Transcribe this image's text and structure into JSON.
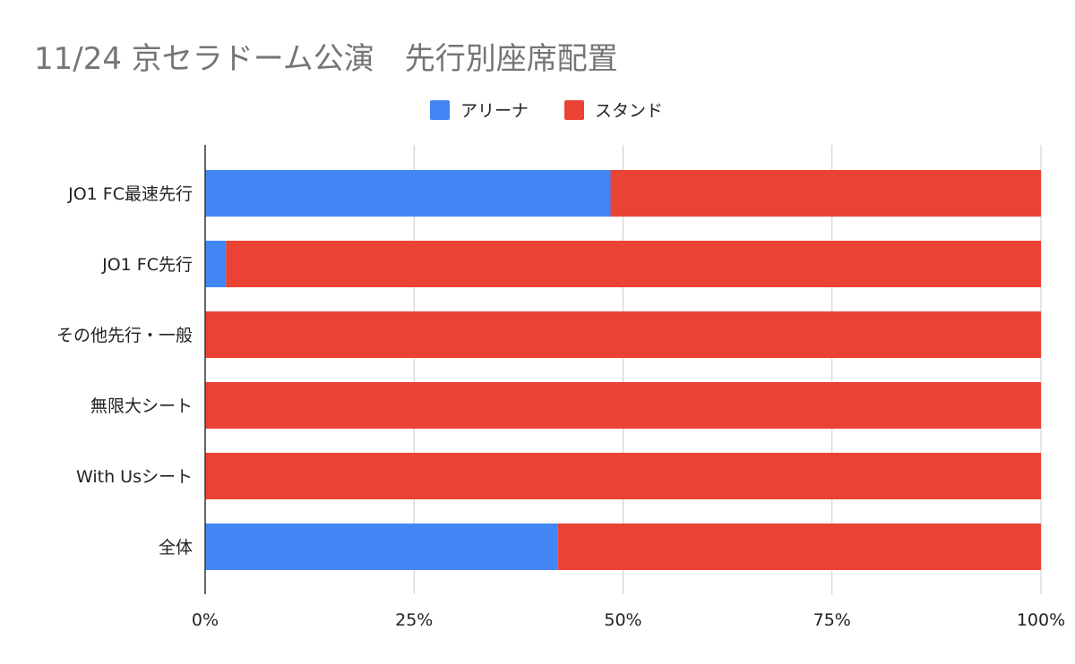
{
  "chart_data": {
    "type": "bar",
    "orientation": "horizontal",
    "stacked": "percent",
    "title": "11/24 京セラドーム公演　先行別座席配置",
    "categories": [
      "JO1 FC最速先行",
      "JO1 FC先行",
      "その他先行・一般",
      "無限大シート",
      "With Usシート",
      "全体"
    ],
    "series": [
      {
        "name": "アリーナ",
        "color": "#4285f4",
        "values": [
          48.5,
          2.5,
          0,
          0,
          0,
          42.2
        ]
      },
      {
        "name": "スタンド",
        "color": "#ea4335",
        "values": [
          51.5,
          97.5,
          100,
          100,
          100,
          57.8
        ]
      }
    ],
    "x_ticks": [
      "0%",
      "25%",
      "50%",
      "75%",
      "100%"
    ],
    "xlim": [
      0,
      100
    ],
    "grid": true,
    "legend_position": "top-center"
  }
}
